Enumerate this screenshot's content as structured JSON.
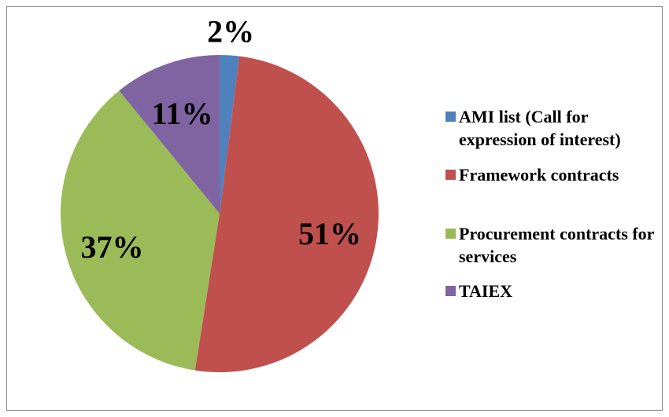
{
  "chart_data": {
    "type": "pie",
    "categories": [
      "AMI list (Call for expression of interest)",
      "Framework contracts",
      "Procurement contracts for services",
      "TAIEX"
    ],
    "values": [
      2,
      51,
      37,
      11
    ],
    "value_labels": [
      "2%",
      "51%",
      "37%",
      "11%"
    ],
    "colors": [
      "#4f81bd",
      "#c0504d",
      "#9bbb59",
      "#8064a2"
    ],
    "legend": "right"
  }
}
